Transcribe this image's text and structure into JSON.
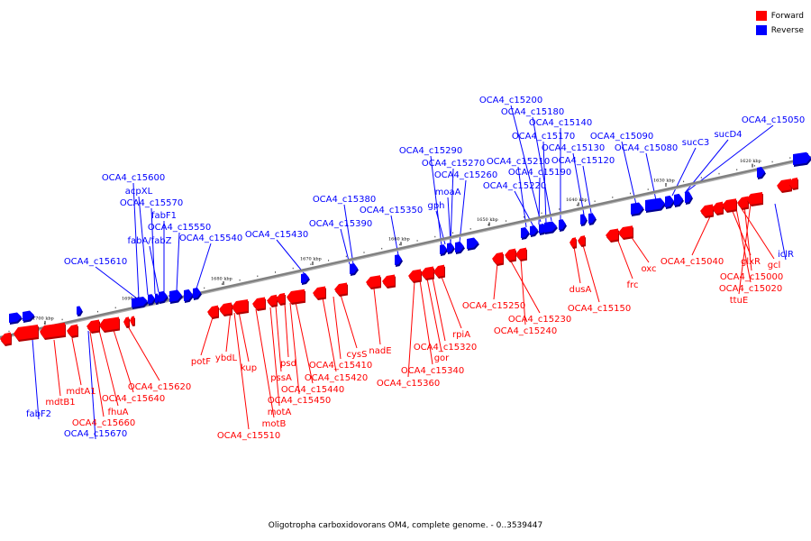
{
  "legend": [
    {
      "label": "Forward",
      "color": "#ff0000"
    },
    {
      "label": "Reverse",
      "color": "#0000ff"
    }
  ],
  "caption": "Oligotropha carboxidovorans OM4, complete genome. - 0..3539447",
  "colors": {
    "forward": "#ff0000",
    "reverse": "#0000ff",
    "backbone": "#808080"
  },
  "scale_ticks": [
    "1700 kbp",
    "1690 kbp",
    "1680 kbp",
    "1670 kbp",
    "1660 kbp",
    "1650 kbp",
    "1640 kbp",
    "1630 kbp",
    "1620 kbp"
  ],
  "reverse_labels": [
    "OCA4_c15200",
    "OCA4_c15180",
    "OCA4_c15140",
    "OCA4_c15050",
    "OCA4_c15170",
    "OCA4_c15090",
    "OCA4_c15130",
    "OCA4_c15080",
    "sucC3",
    "sucD4",
    "OCA4_c15290",
    "OCA4_c15270",
    "OCA4_c15260",
    "OCA4_c15210",
    "OCA4_c15120",
    "OCA4_c15190",
    "OCA4_c15220",
    "OCA4_c15600",
    "acpXL",
    "OCA4_c15570",
    "fabF1",
    "OCA4_c15380",
    "moaA",
    "gph",
    "OCA4_c15350",
    "OCA4_c15550",
    "OCA4_c15390",
    "fabA/fabZ",
    "OCA4_c15540",
    "OCA4_c15430",
    "iclR",
    "OCA4_c15610",
    "fabF2",
    "OCA4_c15670"
  ],
  "forward_labels": [
    "oxc",
    "OCA4_c15040",
    "glxR",
    "gcl",
    "OCA4_c15000",
    "OCA4_c15020",
    "ttuE",
    "frc",
    "dusA",
    "OCA4_c15150",
    "OCA4_c15250",
    "OCA4_c15230",
    "OCA4_c15240",
    "rpiA",
    "OCA4_c15320",
    "gor",
    "OCA4_c15340",
    "OCA4_c15360",
    "nadE",
    "cysS",
    "OCA4_c15410",
    "OCA4_c15420",
    "OCA4_c15440",
    "psd",
    "OCA4_c15450",
    "pssA",
    "motA",
    "motB",
    "kup",
    "ybdL",
    "potF",
    "OCA4_c15510",
    "OCA4_c15620",
    "mdtA1",
    "OCA4_c15640",
    "mdtB1",
    "fhuA",
    "OCA4_c15660"
  ]
}
